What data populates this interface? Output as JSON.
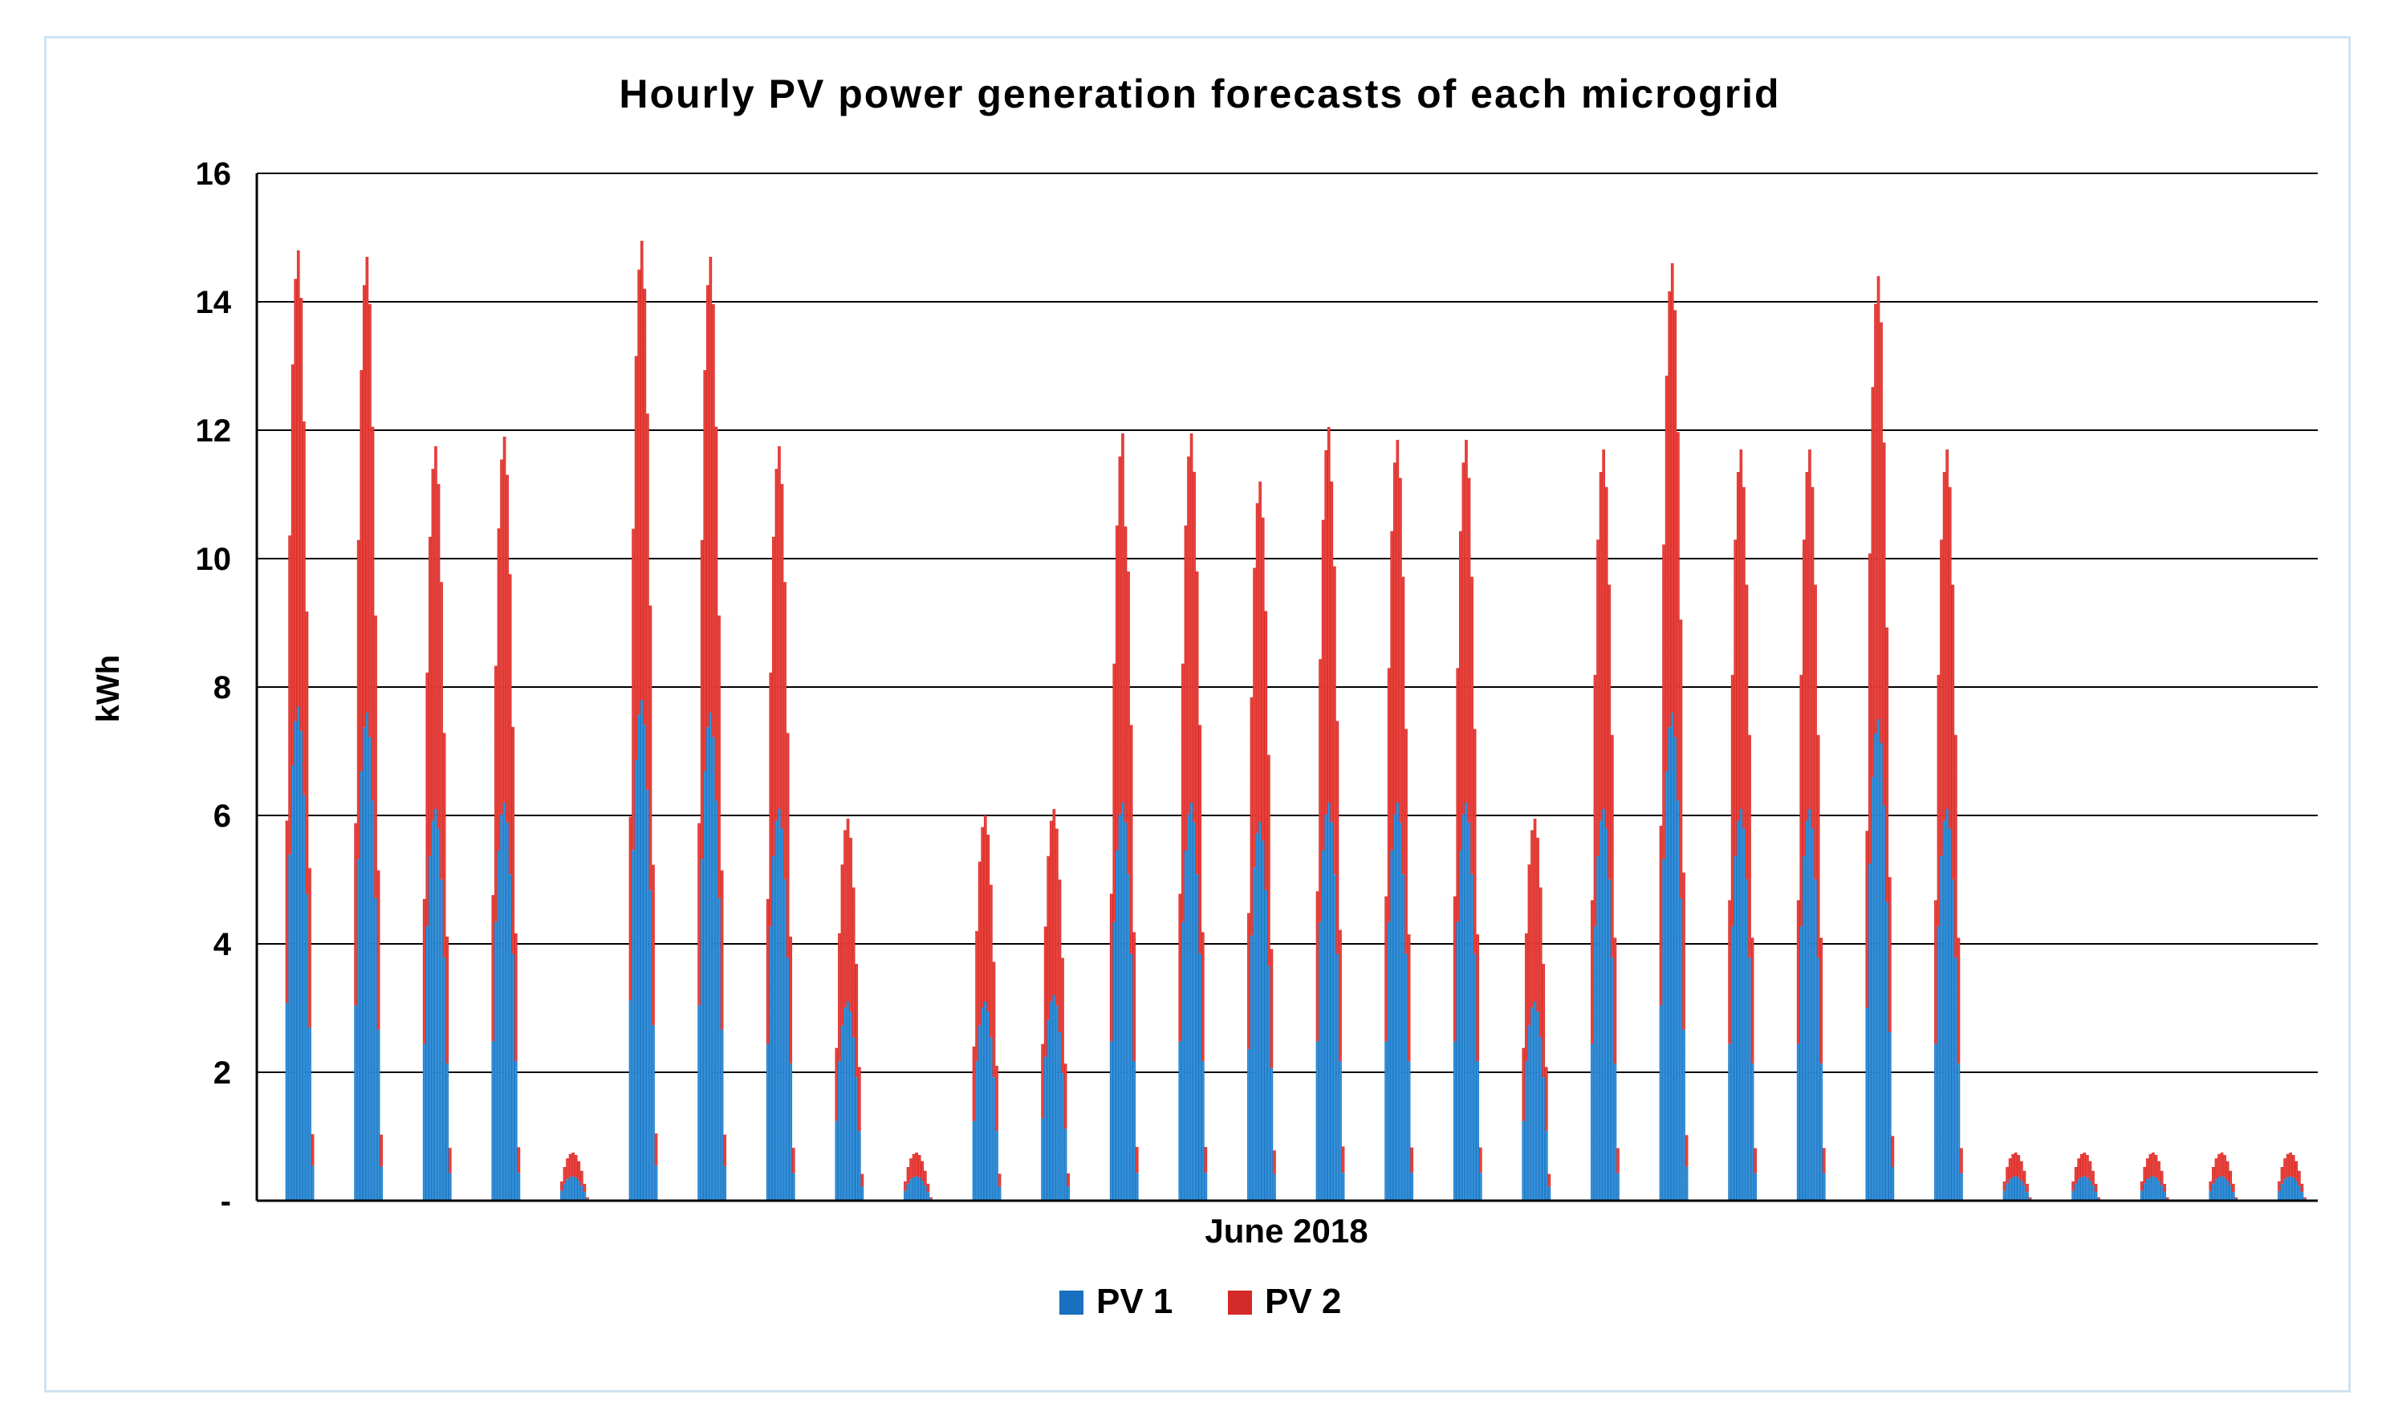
{
  "chart_data": {
    "type": "bar",
    "title": "Hourly PV power generation forecasts of each microgrid",
    "xlabel": "June 2018",
    "ylabel": "kWh",
    "ylim": [
      0,
      16
    ],
    "yticks": [
      0,
      2,
      4,
      6,
      8,
      10,
      12,
      14,
      16
    ],
    "ytick_labels": [
      "-",
      "2",
      "4",
      "6",
      "8",
      "10",
      "12",
      "14",
      "16"
    ],
    "grid": true,
    "stacked": true,
    "legend_position": "bottom-center",
    "hours_per_day": 24,
    "days": 30,
    "series": [
      {
        "name": "PV 1",
        "color": "#1a6fbf",
        "color_light": "#3a9ce0",
        "daily_peaks": [
          7.7,
          7.6,
          6.1,
          6.2,
          0.38,
          7.8,
          7.6,
          6.1,
          3.1,
          0.38,
          3.1,
          3.2,
          6.2,
          6.2,
          5.9,
          6.2,
          6.2,
          6.2,
          3.1,
          6.1,
          7.6,
          6.1,
          6.1,
          7.5,
          6.1,
          0.38,
          0.38,
          0.38,
          0.38,
          0.38
        ]
      },
      {
        "name": "PV 2",
        "color": "#d42a2a",
        "color_light": "#f04a40",
        "daily_peaks": [
          7.1,
          7.1,
          5.65,
          5.7,
          0.37,
          7.15,
          7.1,
          5.65,
          2.85,
          0.37,
          2.9,
          2.9,
          5.75,
          5.75,
          5.3,
          5.85,
          5.65,
          5.65,
          2.85,
          5.6,
          7.0,
          5.6,
          5.6,
          6.9,
          5.6,
          0.37,
          0.37,
          0.37,
          0.37,
          0.37
        ]
      }
    ],
    "spikes": [
      {
        "day": 12,
        "hour_offset": 1,
        "value": 10.5
      },
      {
        "day": 15,
        "hour_offset": 1,
        "value": 11.2
      }
    ],
    "hourly_profile": [
      0.0,
      0.0,
      0.0,
      0.0,
      0.0,
      0.0,
      0.0,
      0.0,
      0.0,
      0.0,
      0.4,
      0.7,
      0.88,
      0.97,
      1.0,
      0.95,
      0.82,
      0.62,
      0.35,
      0.07,
      0.0,
      0.0,
      0.0,
      0.0
    ]
  }
}
